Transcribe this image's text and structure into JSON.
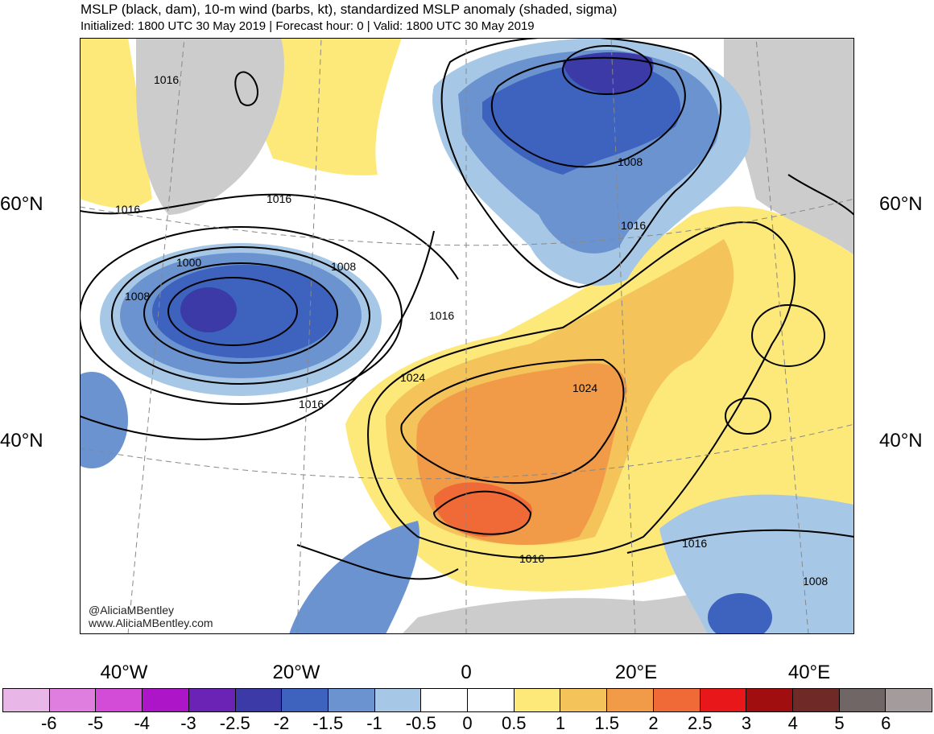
{
  "header": {
    "title": "MSLP (black, dam), 10-m wind (barbs, kt), standardized MSLP anomaly (shaded, sigma)",
    "subtitle": "Initialized: 1800 UTC 30 May 2019 | Forecast hour: 0 | Valid: 1800 UTC 30 May 2019"
  },
  "map": {
    "lat_labels": [
      "60°N",
      "40°N"
    ],
    "lon_labels": [
      "40°W",
      "20°W",
      "0",
      "20°E",
      "40°E"
    ],
    "isobar_labels": [
      "1016",
      "1016",
      "1016",
      "1000",
      "1008",
      "1008",
      "1016",
      "1016",
      "1024",
      "1024",
      "1008",
      "1016",
      "1016",
      "1016",
      "1008"
    ],
    "credits": [
      "@AliciaMBentley",
      "www.AliciaMBentley.com"
    ]
  },
  "colorbar": {
    "labels": [
      "-6",
      "-5",
      "-4",
      "-3",
      "-2.5",
      "-2",
      "-1.5",
      "-1",
      "-0.5",
      "0",
      "0.5",
      "1",
      "1.5",
      "2",
      "2.5",
      "3",
      "4",
      "5",
      "6"
    ],
    "colors": [
      "#e9b6e8",
      "#e07ee0",
      "#d24cd8",
      "#ad15c9",
      "#6a23b4",
      "#3b3aa7",
      "#3e63bf",
      "#6b93cf",
      "#a6c8e6",
      "#ffffff",
      "#ffffff",
      "#fce97a",
      "#f4c35a",
      "#f19b49",
      "#ef6a37",
      "#e8171a",
      "#a10e10",
      "#6f2a28",
      "#706666",
      "#a49c9c"
    ]
  }
}
